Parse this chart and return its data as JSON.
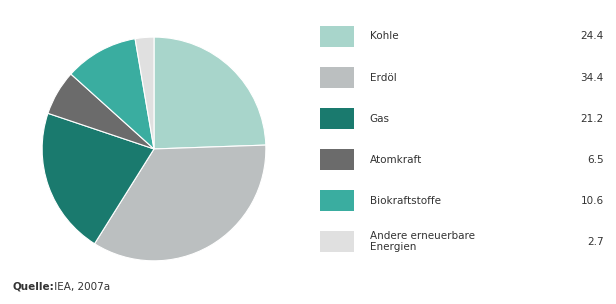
{
  "labels": [
    "Kohle",
    "Erdöl",
    "Gas",
    "Atomkraft",
    "Biokraftstoffe",
    "Andere erneuerbare Energien"
  ],
  "legend_labels": [
    "Kohle",
    "Erdöl",
    "Gas",
    "Atomkraft",
    "Biokraftstoffe",
    "Andere erneuerbare\nEnergien"
  ],
  "values": [
    24.4,
    34.4,
    21.2,
    6.5,
    10.6,
    2.7
  ],
  "value_labels": [
    "24.4",
    "34.4",
    "21.2",
    "6.5",
    "10.6",
    "2.7"
  ],
  "colors": [
    "#a8d5cb",
    "#bbbfc0",
    "#1a7a6e",
    "#6b6b6b",
    "#3aada0",
    "#e0e0e0"
  ],
  "background_color": "#ffffff",
  "source_bold": "Quelle:",
  "source_normal": " IEA, 2007a",
  "startangle": 90,
  "figsize": [
    6.16,
    3.04
  ],
  "dpi": 100
}
